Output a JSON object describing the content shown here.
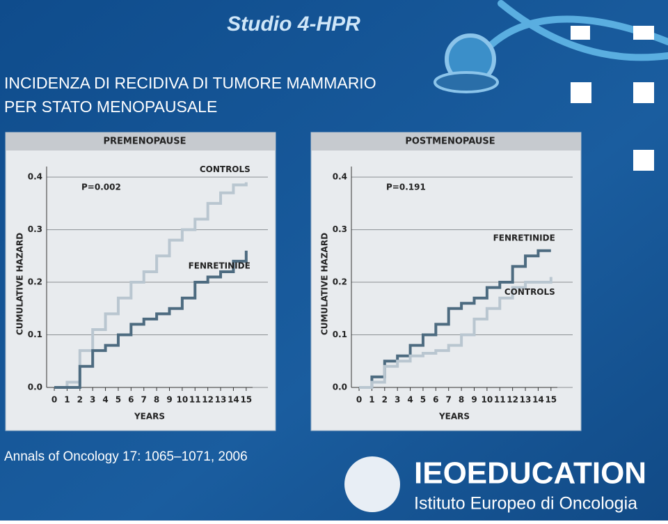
{
  "header": {
    "series_title": "Studio 4-HPR",
    "title_line1": "INCIDENZA DI RECIDIVA DI TUMORE MAMMARIO",
    "title_line2": "PER STATO MENOPAUSALE"
  },
  "citation": "Annals of Oncology 17: 1065–1071, 2006",
  "logo": {
    "brand": "IEOEDUCATION",
    "institute": "Istituto Europeo di Oncologia"
  },
  "chart_data": [
    {
      "type": "line",
      "step": true,
      "title": "PREMENOPAUSE",
      "y_label": "CUMULATIVE HAZARD",
      "x_label": "YEARS",
      "annotation": "P=0.002",
      "x": [
        0,
        1,
        2,
        3,
        4,
        5,
        6,
        7,
        8,
        9,
        10,
        11,
        12,
        13,
        14,
        15
      ],
      "series": [
        {
          "name": "CONTROLS",
          "color": "#b9c6d0",
          "values": [
            0,
            0.01,
            0.07,
            0.11,
            0.14,
            0.17,
            0.2,
            0.22,
            0.25,
            0.28,
            0.3,
            0.32,
            0.35,
            0.37,
            0.385,
            0.39
          ]
        },
        {
          "name": "FENRETINIDE",
          "color": "#4d6b80",
          "values": [
            0,
            0,
            0.04,
            0.07,
            0.08,
            0.1,
            0.12,
            0.13,
            0.14,
            0.15,
            0.17,
            0.2,
            0.21,
            0.22,
            0.24,
            0.26
          ]
        }
      ],
      "xlim": [
        -0.6,
        15.5
      ],
      "ylim": [
        0,
        0.42
      ],
      "xticks": [
        0,
        1,
        2,
        3,
        4,
        5,
        6,
        7,
        8,
        9,
        10,
        11,
        12,
        13,
        14,
        15
      ],
      "yticks": [
        {
          "value": 0,
          "label": "0.0"
        },
        0.1,
        0.2,
        0.3,
        0.4
      ],
      "grid": true
    },
    {
      "type": "line",
      "step": true,
      "title": "POSTMENOPAUSE",
      "y_label": "CUMULATIVE HAZARD",
      "x_label": "YEARS",
      "annotation": "P=0.191",
      "x": [
        0,
        1,
        2,
        3,
        4,
        5,
        6,
        7,
        8,
        9,
        10,
        11,
        12,
        13,
        14,
        15
      ],
      "series": [
        {
          "name": "FENRETINIDE",
          "color": "#4d6b80",
          "values": [
            0,
            0.02,
            0.05,
            0.06,
            0.08,
            0.1,
            0.12,
            0.15,
            0.16,
            0.17,
            0.19,
            0.2,
            0.23,
            0.25,
            0.26,
            0.26
          ]
        },
        {
          "name": "CONTROLS",
          "color": "#b9c6d0",
          "values": [
            0,
            0.01,
            0.04,
            0.05,
            0.06,
            0.065,
            0.07,
            0.08,
            0.1,
            0.13,
            0.15,
            0.17,
            0.19,
            0.2,
            0.2,
            0.21
          ]
        }
      ],
      "xlim": [
        -0.6,
        15.5
      ],
      "ylim": [
        0,
        0.42
      ],
      "xticks": [
        0,
        1,
        2,
        3,
        4,
        5,
        6,
        7,
        8,
        9,
        10,
        11,
        12,
        13,
        14,
        15
      ],
      "yticks": [
        {
          "value": 0,
          "label": "0.0"
        },
        0.1,
        0.2,
        0.3,
        0.4
      ],
      "grid": true
    }
  ]
}
